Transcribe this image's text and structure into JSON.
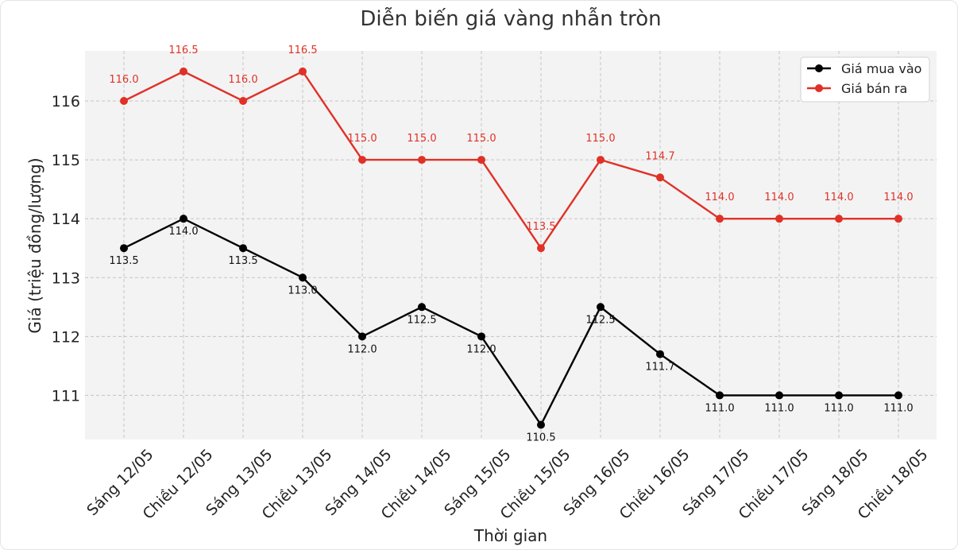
{
  "chart_data": {
    "type": "line",
    "title": "Diễn biến giá vàng nhẫn tròn",
    "xlabel": "Thời gian",
    "ylabel": "Giá (triệu đồng/lượng)",
    "categories": [
      "Sáng 12/05",
      "Chiều 12/05",
      "Sáng 13/05",
      "Chiều 13/05",
      "Sáng 14/05",
      "Chiều 14/05",
      "Sáng 15/05",
      "Chiều 15/05",
      "Sáng 16/05",
      "Chiều 16/05",
      "Sáng 17/05",
      "Chiều 17/05",
      "Sáng 18/05",
      "Chiều 18/05"
    ],
    "series": [
      {
        "name": "Giá mua vào",
        "color": "#000000",
        "values": [
          113.5,
          114.0,
          113.5,
          113.0,
          112.0,
          112.5,
          112.0,
          110.5,
          112.5,
          111.7,
          111.0,
          111.0,
          111.0,
          111.0
        ],
        "labels": [
          "113.5",
          "114.0",
          "113.5",
          "113.0",
          "112.0",
          "112.5",
          "112.0",
          "110.5",
          "112.5",
          "111.7",
          "111.0",
          "111.0",
          "111.0",
          "111.0"
        ]
      },
      {
        "name": "Giá bán ra",
        "color": "#e03127",
        "values": [
          116.0,
          116.5,
          116.0,
          116.5,
          115.0,
          115.0,
          115.0,
          113.5,
          115.0,
          114.7,
          114.0,
          114.0,
          114.0,
          114.0
        ],
        "labels": [
          "116.0",
          "116.5",
          "116.0",
          "116.5",
          "115.0",
          "115.0",
          "115.0",
          "113.5",
          "115.0",
          "114.7",
          "114.0",
          "114.0",
          "114.0",
          "114.0"
        ]
      }
    ],
    "yticks": [
      "111",
      "112",
      "113",
      "114",
      "115",
      "116"
    ],
    "ylim": [
      110.25,
      116.85
    ],
    "grid": true,
    "legend_position": "top-right"
  }
}
